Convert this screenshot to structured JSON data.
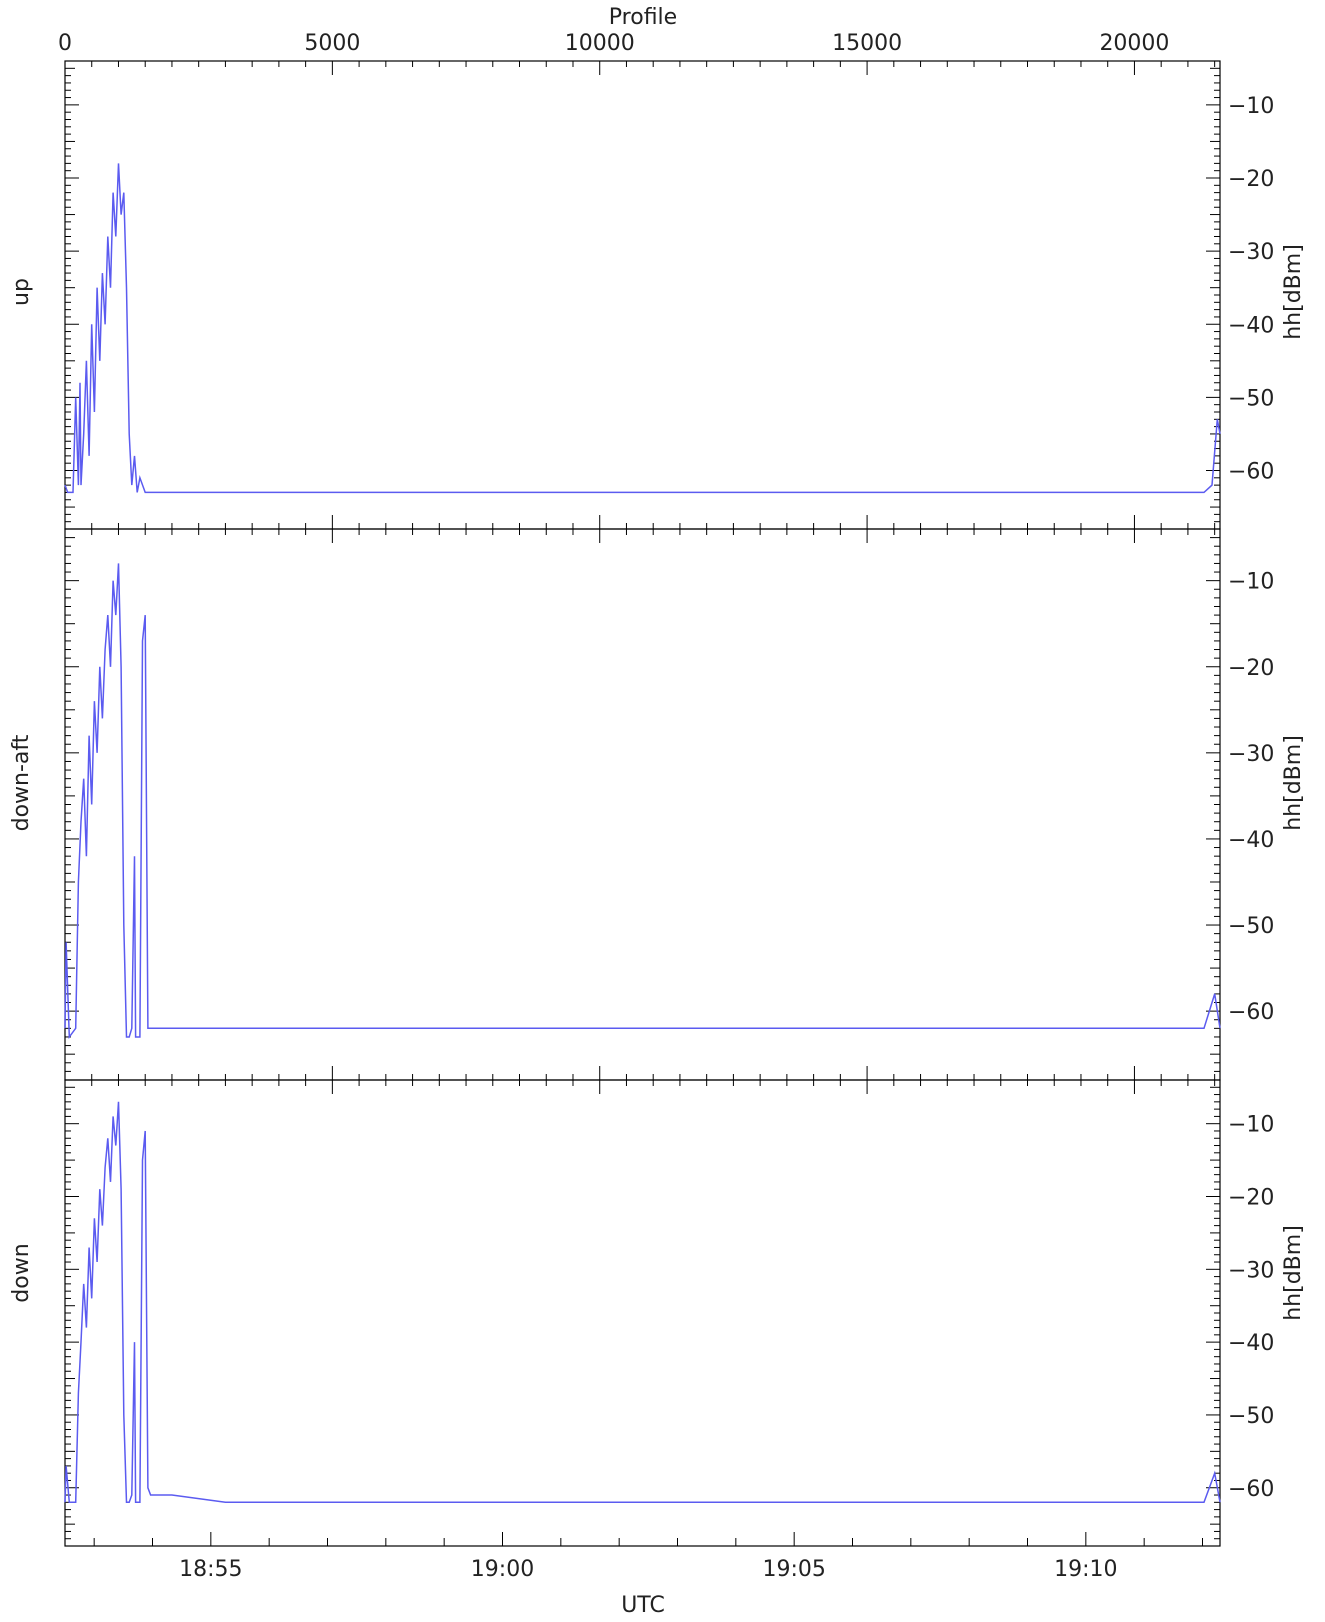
{
  "chart_data": {
    "type": "line",
    "colors": {
      "series": "#5b5bf0",
      "axis": "#000000",
      "text": "#222222"
    },
    "top_axis": {
      "label": "Profile",
      "range": [
        0,
        21600
      ],
      "ticks": [
        0,
        5000,
        10000,
        15000,
        20000
      ],
      "tick_labels": [
        "0",
        "5000",
        "10000",
        "15000",
        "20000"
      ]
    },
    "bottom_axis": {
      "label": "UTC",
      "range_minutes": [
        1132.5,
        1152.3
      ],
      "ticks": [
        1135,
        1140,
        1145,
        1150
      ],
      "tick_labels": [
        "18:55",
        "19:00",
        "19:05",
        "19:10"
      ]
    },
    "right_axis_label": "hh[dBm]",
    "panels": [
      {
        "name": "up",
        "ylim": [
          -68,
          -4
        ],
        "ticks": [
          -10,
          -20,
          -30,
          -40,
          -50,
          -60
        ],
        "tick_labels": [
          "−10",
          "−20",
          "−30",
          "−40",
          "−50",
          "−60"
        ],
        "series": {
          "x": [
            0,
            50,
            150,
            200,
            250,
            280,
            300,
            350,
            400,
            450,
            500,
            550,
            600,
            650,
            700,
            750,
            800,
            850,
            900,
            950,
            1000,
            1050,
            1100,
            1150,
            1200,
            1250,
            1300,
            1350,
            1400,
            1500,
            1600,
            1700,
            1800,
            3000,
            6000,
            9000,
            12000,
            15000,
            18000,
            21300,
            21450,
            21550,
            21600
          ],
          "y": [
            -62,
            -63,
            -63,
            -50,
            -62,
            -48,
            -62,
            -55,
            -45,
            -58,
            -40,
            -52,
            -35,
            -45,
            -33,
            -40,
            -28,
            -35,
            -22,
            -28,
            -18,
            -25,
            -22,
            -35,
            -55,
            -62,
            -58,
            -63,
            -61,
            -63,
            -63,
            -63,
            -63,
            -63,
            -63,
            -63,
            -63,
            -63,
            -63,
            -63,
            -62,
            -53,
            -55
          ]
        }
      },
      {
        "name": "down-aft",
        "ylim": [
          -68,
          -4
        ],
        "ticks": [
          -10,
          -20,
          -30,
          -40,
          -50,
          -60
        ],
        "tick_labels": [
          "−10",
          "−20",
          "−30",
          "−40",
          "−50",
          "−60"
        ],
        "series": {
          "x": [
            0,
            20,
            80,
            200,
            250,
            300,
            350,
            400,
            450,
            500,
            550,
            600,
            650,
            700,
            750,
            800,
            850,
            900,
            950,
            1000,
            1050,
            1100,
            1150,
            1200,
            1250,
            1300,
            1320,
            1350,
            1400,
            1450,
            1500,
            1550,
            1600,
            2000,
            3000,
            6000,
            9000,
            12000,
            15000,
            18000,
            21300,
            21500,
            21600
          ],
          "y": [
            -62,
            -52,
            -63,
            -62,
            -45,
            -38,
            -33,
            -42,
            -28,
            -36,
            -24,
            -30,
            -20,
            -26,
            -18,
            -14,
            -20,
            -10,
            -14,
            -8,
            -20,
            -50,
            -63,
            -63,
            -62,
            -42,
            -63,
            -63,
            -63,
            -17,
            -14,
            -62,
            -62,
            -62,
            -62,
            -62,
            -62,
            -62,
            -62,
            -62,
            -62,
            -58,
            -62
          ]
        }
      },
      {
        "name": "down",
        "ylim": [
          -68,
          -4
        ],
        "ticks": [
          -10,
          -20,
          -30,
          -40,
          -50,
          -60
        ],
        "tick_labels": [
          "−10",
          "−20",
          "−30",
          "−40",
          "−50",
          "−60"
        ],
        "series": {
          "x": [
            0,
            20,
            80,
            200,
            250,
            300,
            350,
            400,
            450,
            500,
            550,
            600,
            650,
            700,
            750,
            800,
            850,
            900,
            950,
            1000,
            1050,
            1100,
            1150,
            1200,
            1250,
            1300,
            1320,
            1350,
            1400,
            1450,
            1500,
            1550,
            1600,
            2000,
            3000,
            6000,
            9000,
            12000,
            15000,
            18000,
            21300,
            21500,
            21600
          ],
          "y": [
            -62,
            -57,
            -62,
            -62,
            -47,
            -40,
            -32,
            -38,
            -27,
            -34,
            -23,
            -29,
            -19,
            -24,
            -16,
            -12,
            -18,
            -9,
            -13,
            -7,
            -19,
            -50,
            -62,
            -62,
            -61,
            -40,
            -62,
            -62,
            -62,
            -15,
            -11,
            -60,
            -61,
            -61,
            -62,
            -62,
            -62,
            -62,
            -62,
            -62,
            -62,
            -58,
            -62
          ]
        }
      }
    ]
  }
}
